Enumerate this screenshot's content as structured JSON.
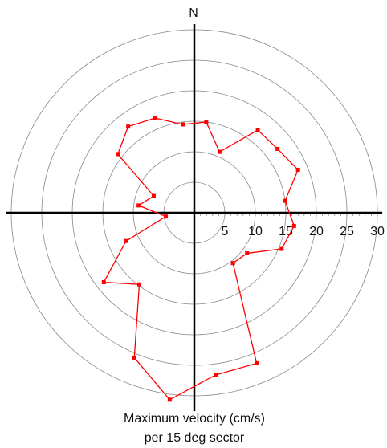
{
  "chart_data": {
    "type": "polar",
    "north_label": "N",
    "caption": [
      "Maximum velocity (cm/s)",
      "per 15 deg sector"
    ],
    "theta": [
      7.5,
      22.5,
      37.5,
      52.5,
      67.5,
      82.5,
      97.5,
      112.5,
      127.5,
      142.5,
      157.5,
      172.5,
      187.5,
      202.5,
      217.5,
      232.5,
      247.5,
      262.5,
      277.5,
      292.5,
      307.5,
      322.5,
      337.5,
      352.5
    ],
    "series": [
      {
        "color": "#ff0000",
        "values": [
          15.0,
          10.8,
          17.1,
          17.2,
          18.4,
          15.0,
          16.5,
          15.5,
          10.9,
          10.4,
          26.7,
          26.8,
          30.9,
          25.7,
          14.8,
          18.7,
          12.1,
          4.7,
          9.2,
          7.2,
          15.8,
          17.8,
          16.8,
          14.6
        ]
      }
    ],
    "rlim": [
      0,
      30
    ],
    "rticks": [
      5,
      10,
      15,
      20,
      25,
      30
    ],
    "grid": true
  }
}
